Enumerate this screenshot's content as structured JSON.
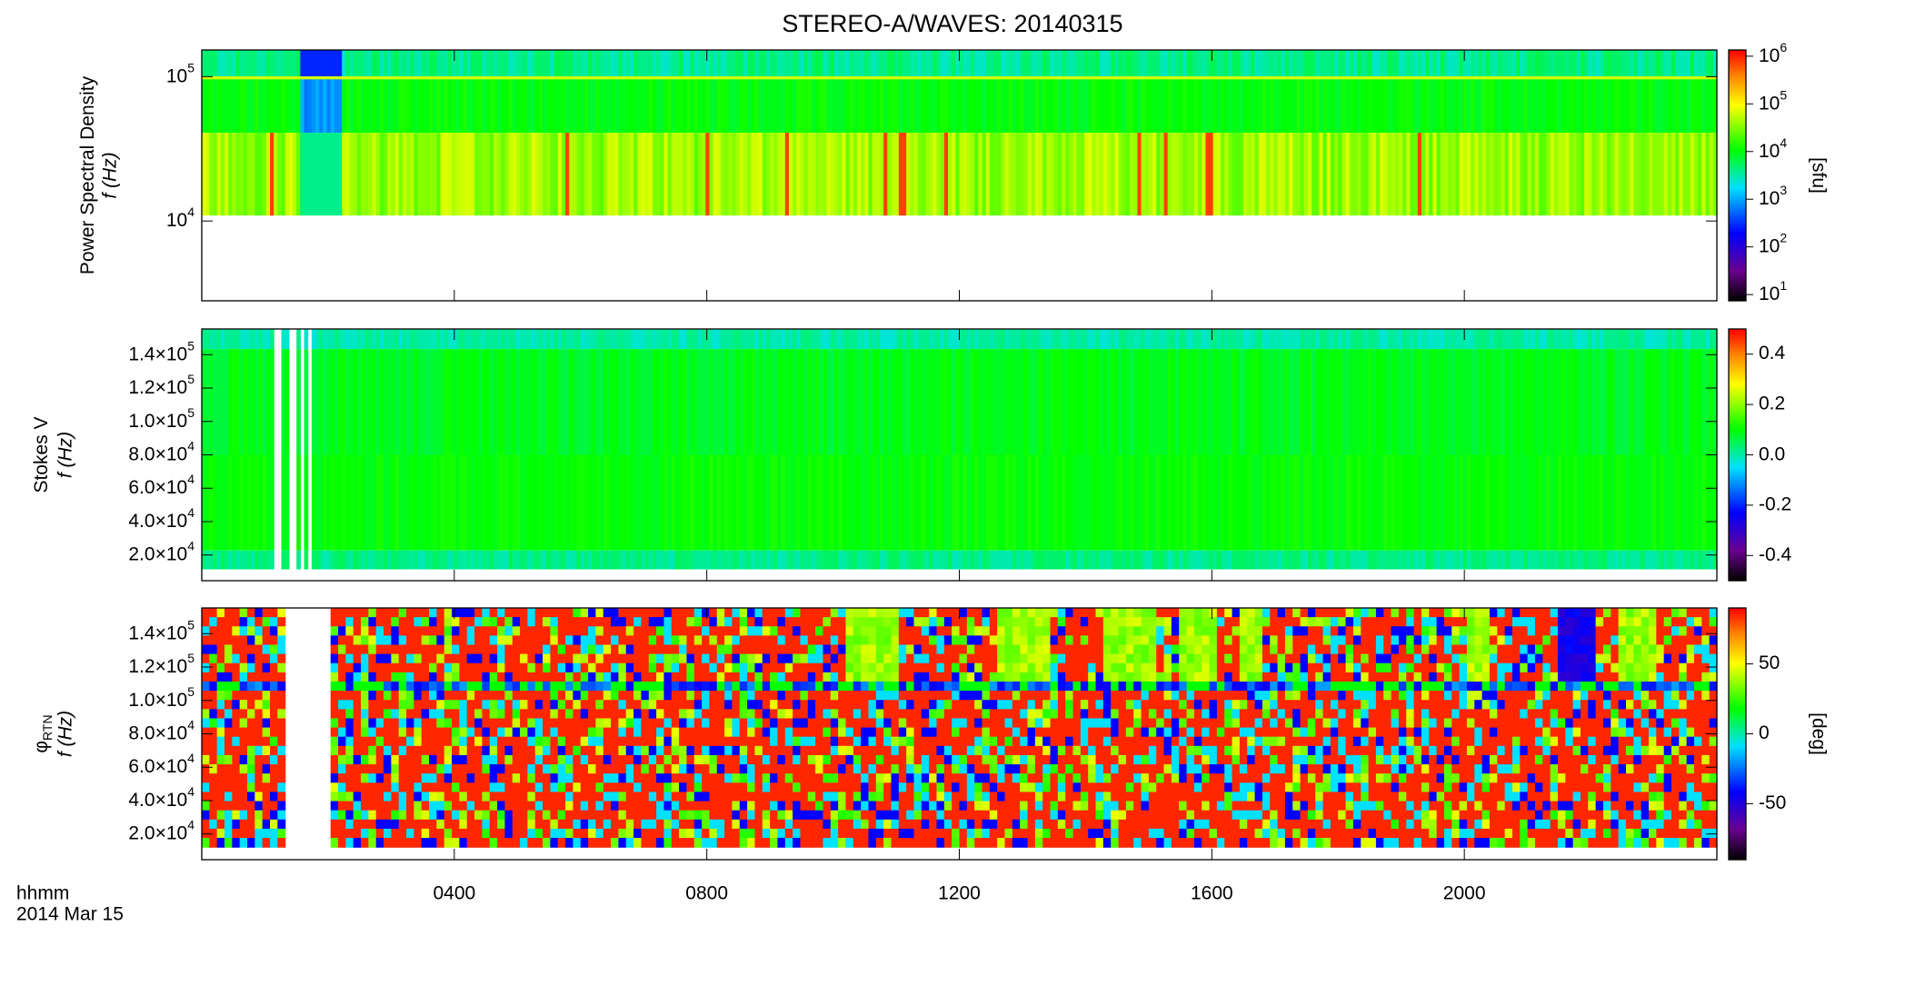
{
  "chart_data": [
    {
      "type": "spectrogram",
      "title": "STEREO-A/WAVES: 20140315",
      "ylabel": "Power Spectral Density",
      "ylabel2": "f (Hz)",
      "ylog": true,
      "ylim": [
        2800,
        153000
      ],
      "yticks": [
        {
          "value": 10000,
          "label": "10",
          "exponent": "4"
        },
        {
          "value": 100000,
          "label": "10",
          "exponent": "5"
        }
      ],
      "colorbar": {
        "label": "[sfu]",
        "log": true,
        "lim": [
          7.4,
          1350000
        ],
        "ticks": [
          {
            "value": 1000000,
            "label": "10",
            "exponent": "6"
          },
          {
            "value": 100000,
            "label": "10",
            "exponent": "5"
          },
          {
            "value": 10000,
            "label": "10",
            "exponent": "4"
          },
          {
            "value": 1000,
            "label": "10",
            "exponent": "3"
          },
          {
            "value": 100,
            "label": "10",
            "exponent": "2"
          },
          {
            "value": 10,
            "label": "10",
            "exponent": "1"
          }
        ]
      }
    },
    {
      "type": "spectrogram",
      "ylabel": "Stokes V",
      "ylabel2": "f (Hz)",
      "ylog": false,
      "ylim": [
        4600,
        155400
      ],
      "yticks": [
        {
          "value": 140000,
          "label": "1.4×10",
          "exponent": "5"
        },
        {
          "value": 120000,
          "label": "1.2×10",
          "exponent": "5"
        },
        {
          "value": 100000,
          "label": "1.0×10",
          "exponent": "5"
        },
        {
          "value": 80000,
          "label": "8.0×10",
          "exponent": "4"
        },
        {
          "value": 60000,
          "label": "6.0×10",
          "exponent": "4"
        },
        {
          "value": 40000,
          "label": "4.0×10",
          "exponent": "4"
        },
        {
          "value": 20000,
          "label": "2.0×10",
          "exponent": "4"
        }
      ],
      "colorbar": {
        "log": false,
        "lim": [
          -0.5,
          0.5
        ],
        "ticks": [
          0.4,
          0.2,
          {
            "value": 0,
            "label": "0.0"
          },
          -0.2,
          -0.4
        ]
      }
    },
    {
      "type": "spectrogram",
      "ylabel": "φ",
      "ylabel_sub": "RTN",
      "ylabel2": "f (Hz)",
      "ylog": false,
      "ylim": [
        4600,
        155400
      ],
      "yticks": [
        {
          "value": 140000,
          "label": "1.4×10",
          "exponent": "5"
        },
        {
          "value": 120000,
          "label": "1.2×10",
          "exponent": "5"
        },
        {
          "value": 100000,
          "label": "1.0×10",
          "exponent": "5"
        },
        {
          "value": 80000,
          "label": "8.0×10",
          "exponent": "4"
        },
        {
          "value": 60000,
          "label": "6.0×10",
          "exponent": "4"
        },
        {
          "value": 40000,
          "label": "4.0×10",
          "exponent": "4"
        },
        {
          "value": 20000,
          "label": "2.0×10",
          "exponent": "4"
        }
      ],
      "colorbar": {
        "label": "[deg]",
        "log": false,
        "lim": [
          -90,
          90
        ],
        "ticks": [
          50,
          0,
          -50
        ]
      },
      "xlim": [
        0,
        24
      ],
      "xticks": [
        {
          "value": 4,
          "label": "0400"
        },
        {
          "value": 8,
          "label": "0800"
        },
        {
          "value": 12,
          "label": "1200"
        },
        {
          "value": 16,
          "label": "1600"
        },
        {
          "value": 20,
          "label": "2000"
        }
      ],
      "xlabel": "hhmm",
      "xlabel2": "2014 Mar 15"
    }
  ]
}
